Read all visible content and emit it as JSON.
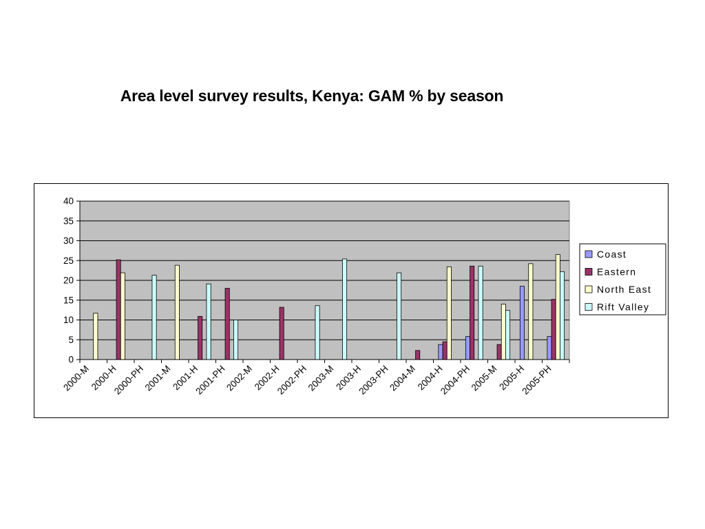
{
  "title": "Area level survey results, Kenya: GAM % by season",
  "chart_data": {
    "type": "bar",
    "title": "",
    "xlabel": "",
    "ylabel": "",
    "ylim": [
      0,
      40
    ],
    "yticks": [
      0,
      5,
      10,
      15,
      20,
      25,
      30,
      35,
      40
    ],
    "grid": true,
    "legend_position": "right",
    "categories": [
      "2000-M",
      "2000-H",
      "2000-PH",
      "2001-M",
      "2001-H",
      "2001-PH",
      "2002-M",
      "2002-H",
      "2002-PH",
      "2003-M",
      "2003-H",
      "2003-PH",
      "2004-M",
      "2004-H",
      "2004-PH",
      "2005-M",
      "2005-H",
      "2005-PH"
    ],
    "series": [
      {
        "name": "Coast",
        "color": "#9999ff",
        "values": [
          null,
          null,
          null,
          null,
          null,
          null,
          null,
          null,
          null,
          null,
          null,
          null,
          null,
          3.8,
          5.8,
          null,
          18.5,
          5.8
        ]
      },
      {
        "name": "Eastern",
        "color": "#993366",
        "values": [
          null,
          25.2,
          null,
          null,
          10.9,
          18.0,
          null,
          13.2,
          null,
          null,
          null,
          null,
          2.3,
          4.5,
          23.6,
          3.8,
          null,
          15.2
        ]
      },
      {
        "name": "North East",
        "color": "#ffffcc",
        "values": [
          11.7,
          21.9,
          null,
          23.8,
          null,
          null,
          null,
          null,
          null,
          null,
          null,
          null,
          null,
          23.4,
          null,
          14.0,
          24.2,
          26.5
        ]
      },
      {
        "name": "Rift Valley",
        "color": "#ccffff",
        "values": [
          null,
          null,
          21.3,
          null,
          19.1,
          10.0,
          null,
          null,
          13.6,
          25.4,
          null,
          21.9,
          null,
          null,
          23.6,
          12.4,
          null,
          22.2
        ]
      }
    ]
  }
}
